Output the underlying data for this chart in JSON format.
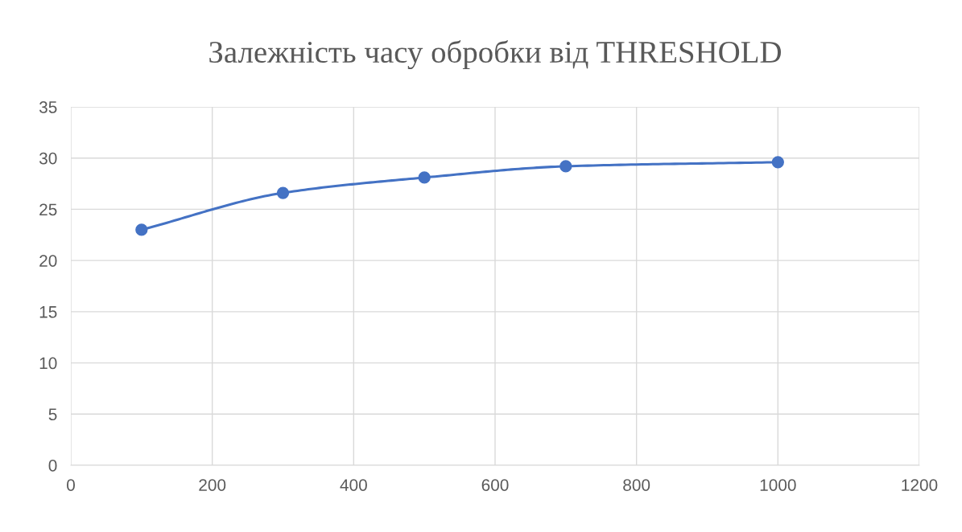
{
  "chart_data": {
    "type": "line",
    "title": "Залежність часу обробки від THRESHOLD",
    "x": [
      100,
      300,
      500,
      700,
      1000
    ],
    "series": [
      {
        "color": "#4472c4",
        "values": [
          23,
          26.6,
          28.1,
          29.2,
          29.6
        ]
      }
    ],
    "xlim": [
      0,
      1200
    ],
    "xticks": [
      0,
      200,
      400,
      600,
      800,
      1000,
      1200
    ],
    "ylim": [
      0,
      35
    ],
    "yticks": [
      0,
      5,
      10,
      15,
      20,
      25,
      30,
      35
    ],
    "grid": true,
    "marker": "circle",
    "line_style": "solid"
  }
}
